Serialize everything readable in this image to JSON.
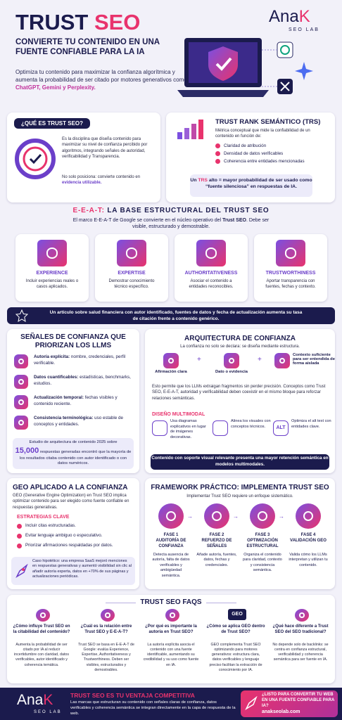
{
  "header": {
    "logo": {
      "name": "Ana",
      "mark": "K",
      "tag": "SEO LAB"
    },
    "title": [
      "TRUST",
      "SEO"
    ],
    "subtitle": "CONVIERTE TU CONTENIDO EN UNA FUENTE CONFIABLE PARA LA IA",
    "intro": [
      "Optimiza tu contenido para maximizar la confianza algorítmica y aumenta la probabilidad de ser citado por motores generativos como ",
      "ChatGPT, Gemini y Perplexity."
    ]
  },
  "what_is": {
    "title": "¿QUÉ ES TRUST SEO?",
    "text": "Es la disciplina que diseña contenido para maximizar su nivel de confianza percibido por algoritmos, integrando señales de autoridad, verificabilidad y Transparencia.",
    "note": [
      "No solo posiciona: convierte contenido en ",
      "evidencia utilizable."
    ]
  },
  "trs": {
    "title": "TRUST RANK SEMÁNTICO (TRS)",
    "text": "Métrica conceptual que mide la confiabilidad de un contenido en función de:",
    "bullets": [
      "Claridad de atribución",
      "Densidad de datos verificables",
      "Coherencia entre entidades mencionadas"
    ],
    "callout": [
      "Un ",
      "TRS",
      " alto = mayor probabilidad de ser usado como “fuente silenciosa” en respuestas de IA."
    ]
  },
  "eeat": {
    "title": [
      "E-E-A-T:",
      "LA BASE ESTRUCTURAL DEL TRUST SEO"
    ],
    "text": [
      "El marco E-E-A-T de Google se convierte en el núcleo operativo del ",
      "Trust SEO",
      ". Debe ser visible, estructurado y demostrable."
    ],
    "cards": [
      {
        "title": "EXPERIENCE",
        "text": "Incluir experiencias reales o casos aplicados."
      },
      {
        "title": "EXPERTISE",
        "text": "Demostrar conocimiento técnico específico."
      },
      {
        "title": "AUTHORITATIVENESS",
        "text": "Asociar el contenido a entidades reconocibles."
      },
      {
        "title": "TRUSTWORTHINESS",
        "text": "Aportar transparencia con fuentes, fechas y contexto."
      }
    ],
    "banner": "Un artículo sobre salud financiera con autor identificado, fuentes de datos y fecha de actualización aumenta su tasa de citación frente a contenido genérico."
  },
  "signals": {
    "title": "SEÑALES DE CONFIANZA QUE PRIORIZAN LOS LLMS",
    "items": [
      {
        "label": "Autoría explícita:",
        "text": "nombre, credenciales, perfil verificable."
      },
      {
        "label": "Datos cuantificables:",
        "text": "estadísticas, benchmarks, estudios."
      },
      {
        "label": "Actualización temporal:",
        "text": "fechas visibles y contenido reciente."
      },
      {
        "label": "Consistencia terminológica:",
        "text": "uso estable de conceptos y entidades."
      }
    ],
    "stat": {
      "before": "Estudio de arquitectura de contenido 2025 sobre",
      "number": "15,000",
      "after": "respuestas generadas encontró que la mayoría de los resultados citaba contenido con autor identificado o con datos numéricos."
    }
  },
  "architecture": {
    "title": "ARQUITECTURA DE CONFIANZA",
    "subtitle": "La confianza no solo se declara: se diseña mediante estructura.",
    "elements": [
      "Afirmación clara",
      "Dato o evidencia",
      "Contexto suficiente para ser entendida de forma aislada"
    ],
    "text": "Esto permite que los LLMs extraigan fragmentos sin perder precisión. Conceptos como Trust SEO, E-E-A-T, autoridad y verificabilidad deben coexistir en el mismo bloque para reforzar relaciones semánticas.",
    "multimodal": {
      "title": "DISEÑO MULTIMODAL",
      "items": [
        "Usa diagramas explicativos en lugar de imágenes decorativas.",
        "Alinea los visuales con conceptos técnicos.",
        "Optimiza el alt text con entidades clave."
      ],
      "alt_badge": "ALT"
    },
    "banner": "Contenido con soporte visual relevante presenta una mayor retención semántica en modelos multimodales."
  },
  "geo": {
    "title": "GEO APLICADO A LA CONFIANZA",
    "text": "GEO (Generative Engine Optimization) en Trust SEO implica optimizar contenido para ser elegido como fuente confiable en respuestas generativas.",
    "strategies_title": "ESTRATEGIAS CLAVE",
    "strategies": [
      "Incluir citas estructuradas.",
      "Evitar lenguaje ambiguo o especulativo.",
      "Priorizar afirmaciones respaldadas por datos."
    ],
    "case": "Caso hipotético: una empresa SaaS mejoró menciones en respuestas generativas y aumentó visibilidad sin clic al añadir autoría experta, datos en +70% de sus páginas y actualizaciones periódicas."
  },
  "framework": {
    "title": "FRAMEWORK PRÁCTICO: IMPLEMENTA TRUST SEO",
    "subtitle": "Implementar Trust SEO requiere un enfoque sistemático.",
    "phases": [
      {
        "step": "FASE 1",
        "name": "AUDITORÍA DE CONFIANZA",
        "text": "Detecta ausencia de autoría, falta de datos verificables y ambigüedad semántica."
      },
      {
        "step": "FASE 2",
        "name": "REFUERZO DE SEÑALES",
        "text": "Añade autoría, fuentes, datos, fechas y credenciales."
      },
      {
        "step": "FASE 3",
        "name": "OPTIMIZACIÓN ESTRUCTURAL",
        "text": "Organiza el contenido para claridad, contexto y consistencia semántica."
      },
      {
        "step": "FASE 4",
        "name": "VALIDACIÓN GEO",
        "text": "Valida cómo los LLMs interpretan y utilizan tu contenido."
      }
    ]
  },
  "faqs": {
    "title": "TRUST SEO FAQS",
    "geo_badge": "GEO",
    "items": [
      {
        "q": "¿Cómo influye Trust SEO en la citabilidad del contenido?",
        "a": "Aumenta la probabilidad de ser citado por IA al reducir incertidumbre con claridad, datos verificables, autor identificado y coherencia temática."
      },
      {
        "q": "¿Cuál es la relación entre Trust SEO y E-E-A-T?",
        "a": "Trust SEO se basa en E-E-A-T de Google: evalúa Experience, Expertise, Authoritativeness y Trustworthiness. Deben ser visibles, estructurados y demostrables."
      },
      {
        "q": "¿Por qué es importante la autoría en Trust SEO?",
        "a": "La autoría explícita asocia el contenido con una fuente identificable, aumentando su credibilidad y su uso como fuente en IA."
      },
      {
        "q": "¿Cómo se aplica GEO dentro de Trust SEO?",
        "a": "GEO complementa Trust SEO optimizando para motores generativos: estructura clara, datos verificables y lenguaje preciso facilitan la extracción de conocimiento por IA."
      },
      {
        "q": "¿Qué hace diferente a Trust SEO del SEO tradicional?",
        "a": "No depende solo de backlinks: se centra en confianza estructural, verificabilidad y coherencia semántica para ser fuente en IA."
      }
    ]
  },
  "footer": {
    "logo": {
      "name": "Ana",
      "mark": "K",
      "tag": "SEO LAB"
    },
    "title": "TRUST SEO ES TU VENTAJA COMPETITIVA",
    "text": "Las marcas que estructuran su contenido con señales claras de confianza, datos verificables y coherencia semántica se integran directamente en la capa de respuesta de la web.",
    "cta": "¿LISTO PARA CONVERTIR TU WEB EN UNA FUENTE CONFIABLE PARA IA?",
    "url": "anakseolab.com"
  }
}
